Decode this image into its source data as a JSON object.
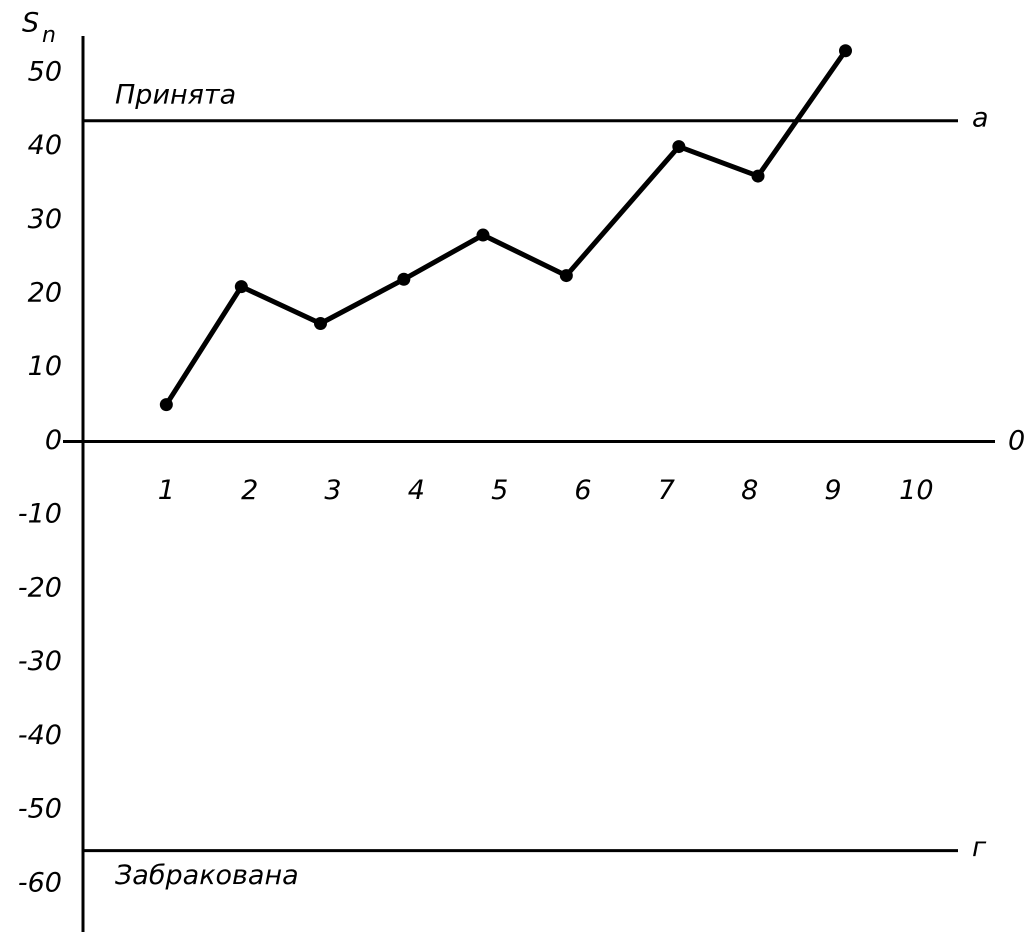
{
  "chart_data": {
    "type": "line",
    "ylabel": "S",
    "ylabel_sub": "n",
    "x_axis_end_label": "0",
    "x": [
      1,
      1.9,
      2.85,
      3.85,
      4.8,
      5.8,
      7.15,
      8.1,
      9.15
    ],
    "series": [
      {
        "color": "#000000",
        "values": [
          5,
          21,
          16,
          22,
          28,
          22.5,
          40,
          36,
          53
        ]
      }
    ],
    "xlim": [
      0,
      10.8
    ],
    "xticks": [
      1,
      2,
      3,
      4,
      5,
      6,
      7,
      8,
      9,
      10
    ],
    "ylim": [
      -66,
      55
    ],
    "yticks": [
      -60,
      -50,
      -40,
      -30,
      -20,
      -10,
      0,
      10,
      20,
      30,
      40,
      50
    ],
    "grid": false,
    "reference_lines": [
      {
        "value": 43.5,
        "label": "Принята",
        "marker": "а"
      },
      {
        "value": -55.5,
        "label": "Забракована",
        "marker": "г"
      }
    ]
  }
}
